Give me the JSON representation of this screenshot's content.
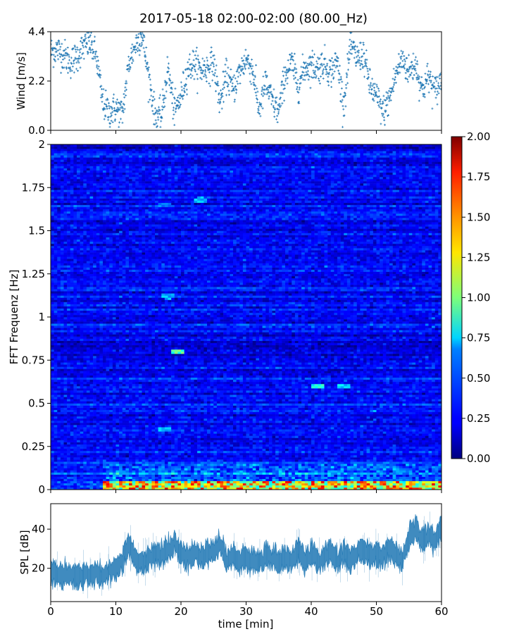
{
  "title": "2017-05-18 02:00-02:00 (80.00_Hz)",
  "chart_data": [
    {
      "type": "scatter",
      "name": "wind",
      "ylabel": "Wind [m/s]",
      "xlim": [
        0,
        60
      ],
      "ylim": [
        0,
        4.4
      ],
      "yticks": [
        "0.0",
        "2.2",
        "4.4"
      ],
      "points": [
        [
          0,
          3.5
        ],
        [
          1,
          3.6
        ],
        [
          2,
          3.4
        ],
        [
          3,
          3.0
        ],
        [
          4,
          3.3
        ],
        [
          5,
          3.7
        ],
        [
          6,
          3.9
        ],
        [
          7,
          3.3
        ],
        [
          8,
          1.2
        ],
        [
          9,
          0.8
        ],
        [
          10,
          1.0
        ],
        [
          11,
          0.7
        ],
        [
          12,
          3.0
        ],
        [
          13,
          3.8
        ],
        [
          14,
          4.3
        ],
        [
          15,
          2.5
        ],
        [
          16,
          0.7
        ],
        [
          17,
          0.6
        ],
        [
          18,
          2.8
        ],
        [
          19,
          0.8
        ],
        [
          20,
          1.5
        ],
        [
          21,
          2.7
        ],
        [
          22,
          3.0
        ],
        [
          23,
          2.7
        ],
        [
          24,
          2.8
        ],
        [
          25,
          3.0
        ],
        [
          26,
          1.2
        ],
        [
          27,
          2.5
        ],
        [
          28,
          1.8
        ],
        [
          29,
          2.6
        ],
        [
          30,
          3.2
        ],
        [
          31,
          2.7
        ],
        [
          32,
          0.9
        ],
        [
          33,
          2.1
        ],
        [
          34,
          1.3
        ],
        [
          35,
          0.8
        ],
        [
          36,
          2.5
        ],
        [
          37,
          3.0
        ],
        [
          38,
          2.0
        ],
        [
          39,
          2.8
        ],
        [
          40,
          2.9
        ],
        [
          41,
          2.8
        ],
        [
          42,
          3.0
        ],
        [
          43,
          2.6
        ],
        [
          44,
          3.1
        ],
        [
          45,
          1.1
        ],
        [
          46,
          3.8
        ],
        [
          47,
          3.2
        ],
        [
          48,
          3.4
        ],
        [
          49,
          2.0
        ],
        [
          50,
          1.5
        ],
        [
          51,
          0.8
        ],
        [
          52,
          1.4
        ],
        [
          53,
          2.5
        ],
        [
          54,
          3.2
        ],
        [
          55,
          2.6
        ],
        [
          56,
          3.0
        ],
        [
          57,
          1.8
        ],
        [
          58,
          2.4
        ],
        [
          59,
          1.7
        ],
        [
          60,
          2.3
        ]
      ]
    },
    {
      "type": "heatmap",
      "name": "spectrogram",
      "ylabel": "FFT Frequenz [Hz]",
      "xlim": [
        0,
        60
      ],
      "ylim": [
        0,
        2
      ],
      "yticks": [
        "0",
        "0.25",
        "0.5",
        "0.75",
        "1",
        "1.25",
        "1.5",
        "1.75",
        "2"
      ],
      "colorbar": {
        "min": 0.0,
        "max": 2.0,
        "ticks": [
          "0.00",
          "0.25",
          "0.50",
          "0.75",
          "1.00",
          "1.25",
          "1.50",
          "1.75",
          "2.00"
        ],
        "colormap": "jet"
      },
      "profile": {
        "background_level": 0.25,
        "low_freq_band_hz": 0.05,
        "low_freq_band_level": 1.8,
        "hotspots": [
          {
            "t": 19.5,
            "f": 0.8,
            "v": 1.1
          },
          {
            "t": 41,
            "f": 0.6,
            "v": 0.9
          },
          {
            "t": 45,
            "f": 0.6,
            "v": 0.8
          },
          {
            "t": 23,
            "f": 1.68,
            "v": 0.7
          },
          {
            "t": 17.5,
            "f": 1.65,
            "v": 0.6
          },
          {
            "t": 18,
            "f": 1.12,
            "v": 0.7
          },
          {
            "t": 17.5,
            "f": 0.35,
            "v": 0.7
          }
        ]
      }
    },
    {
      "type": "area",
      "name": "spl",
      "ylabel": "SPL [dB]",
      "xlabel": "time [min]",
      "xlim": [
        0,
        60
      ],
      "ylim": [
        3,
        53
      ],
      "yticks": [
        "20",
        "40"
      ],
      "xticks": [
        "0",
        "10",
        "20",
        "30",
        "40",
        "50",
        "60"
      ],
      "mean": [
        [
          0,
          18
        ],
        [
          2,
          17
        ],
        [
          4,
          16
        ],
        [
          6,
          17
        ],
        [
          8,
          17
        ],
        [
          10,
          20
        ],
        [
          11,
          24
        ],
        [
          12,
          32
        ],
        [
          13,
          25
        ],
        [
          14,
          23
        ],
        [
          16,
          26
        ],
        [
          18,
          29
        ],
        [
          19,
          32
        ],
        [
          20,
          28
        ],
        [
          21,
          25
        ],
        [
          22,
          28
        ],
        [
          23,
          25
        ],
        [
          24,
          27
        ],
        [
          25,
          29
        ],
        [
          26,
          32
        ],
        [
          27,
          24
        ],
        [
          28,
          27
        ],
        [
          29,
          23
        ],
        [
          30,
          25
        ],
        [
          31,
          24
        ],
        [
          32,
          23
        ],
        [
          33,
          27
        ],
        [
          34,
          25
        ],
        [
          35,
          23
        ],
        [
          36,
          26
        ],
        [
          37,
          24
        ],
        [
          38,
          30
        ],
        [
          39,
          23
        ],
        [
          40,
          27
        ],
        [
          41,
          24
        ],
        [
          42,
          25
        ],
        [
          43,
          29
        ],
        [
          44,
          23
        ],
        [
          45,
          28
        ],
        [
          46,
          24
        ],
        [
          47,
          27
        ],
        [
          48,
          29
        ],
        [
          49,
          25
        ],
        [
          50,
          28
        ],
        [
          51,
          26
        ],
        [
          52,
          30
        ],
        [
          53,
          27
        ],
        [
          54,
          24
        ],
        [
          55,
          35
        ],
        [
          56,
          41
        ],
        [
          57,
          34
        ],
        [
          58,
          38
        ],
        [
          59,
          33
        ],
        [
          60,
          42
        ]
      ],
      "band_halfwidth": 5
    }
  ]
}
